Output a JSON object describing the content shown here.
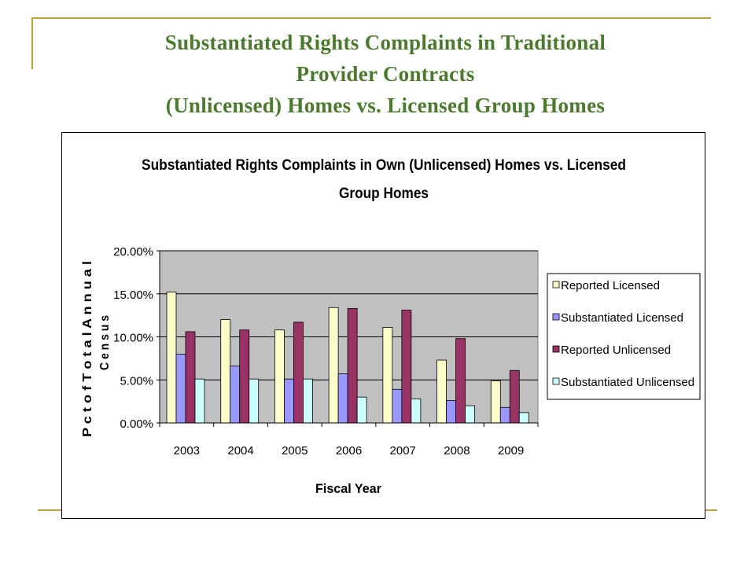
{
  "slide": {
    "title_lines": [
      "Substantiated Rights Complaints in Traditional",
      "Provider Contracts",
      "(Unlicensed) Homes vs. Licensed Group Homes"
    ]
  },
  "chart_data": {
    "type": "bar",
    "title_lines": [
      "Substantiated Rights Complaints in Own (Unlicensed) Homes vs. Licensed",
      "Group Homes"
    ],
    "xlabel": "Fiscal Year",
    "ylabel_lines": [
      "P c t  o f  T o t a l  A n n u a l",
      "C e n s u s"
    ],
    "categories": [
      "2003",
      "2004",
      "2005",
      "2006",
      "2007",
      "2008",
      "2009"
    ],
    "ylim": [
      0,
      20
    ],
    "yticks": [
      "0.00%",
      "5.00%",
      "10.00%",
      "15.00%",
      "20.00%"
    ],
    "grid": true,
    "legend_position": "right",
    "plot_background": "#c0c0c0",
    "series": [
      {
        "name": "Reported Licensed",
        "color": "#ffffcc",
        "values": [
          15.2,
          12.0,
          10.8,
          13.4,
          11.1,
          7.3,
          4.9
        ]
      },
      {
        "name": "Substantiated Licensed",
        "color": "#9999ff",
        "values": [
          8.0,
          6.6,
          5.1,
          5.7,
          3.9,
          2.6,
          1.8
        ]
      },
      {
        "name": "Reported Unlicensed",
        "color": "#993366",
        "values": [
          10.6,
          10.8,
          11.7,
          13.3,
          13.1,
          9.8,
          6.1
        ]
      },
      {
        "name": "Substantiated Unlicensed",
        "color": "#ccffff",
        "values": [
          5.1,
          5.1,
          5.1,
          3.0,
          2.8,
          2.0,
          1.2
        ]
      }
    ]
  }
}
